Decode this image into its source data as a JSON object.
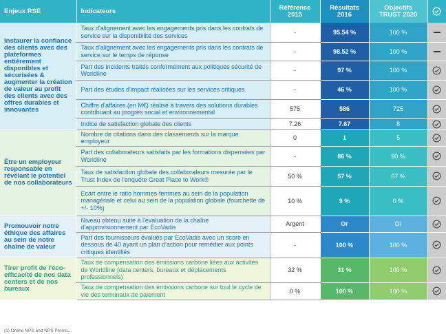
{
  "header": {
    "enjeux": "Enjeux RSE",
    "indicateurs": "Indicateurs",
    "reference_l1": "Référence",
    "reference_l2": "2015",
    "resultats_l1": "Résultats",
    "resultats_l2": "2016",
    "objectifs_l1": "Objectifs",
    "objectifs_l2": "TRUST 2020",
    "check_icon": "check-circle-icon"
  },
  "groups": [
    {
      "enjeu": "Instaurer la confiance des clients avec des plateformes entièrement disponibles et sécurisées & augmenter la création de valeur au profit des clients avec des offres durables et innovantes",
      "rows": [
        {
          "indicateur": "Taux d'alignement avec les engagements pris dans les contrats de service sur la disponibilité des services",
          "reference": "-",
          "resultat": "95.54 %",
          "objectif": "100 %",
          "statut": "dash"
        },
        {
          "indicateur": "Taux d'alignement avec les engagements pris dans les contrats de service sur le temps de réponse",
          "reference": "-",
          "resultat": "98.52 %",
          "objectif": "100 %",
          "statut": "dash"
        },
        {
          "indicateur": "Part des incidents traités conformément aux politiques sécurité de Worldline",
          "reference": "-",
          "resultat": "97 %",
          "objectif": "100 %",
          "statut": "check"
        },
        {
          "indicateur": "Part des études d'impact réalisées sur les services critiques",
          "reference": "-",
          "resultat": "46 %",
          "objectif": "100 %",
          "statut": "check"
        },
        {
          "indicateur": "Chiffre d'affaires (en M€) réalisé à travers des solutions durables contribuant au progrès social et environnemental",
          "reference": "575",
          "resultat": "586",
          "objectif": "725",
          "statut": "check"
        },
        {
          "indicateur": "Indice de satisfaction globale des clients",
          "reference": "7.26",
          "resultat": "7.67",
          "objectif": "8",
          "statut": "check"
        }
      ]
    },
    {
      "enjeu": "Être un employeur responsable en révélant le potentiel de nos collaborateurs",
      "rows": [
        {
          "indicateur": "Nombre de citations dans des classements sur la marque employeur",
          "reference": "0",
          "resultat": "1",
          "objectif": "5",
          "statut": "check"
        },
        {
          "indicateur": "Part des collaborateurs satisfaits par les formations dispensées par Worldline",
          "reference": "-",
          "resultat": "86 %",
          "objectif": "90 %",
          "statut": "check"
        },
        {
          "indicateur": "Taux de satisfaction globale des collaborateurs mesurée par le Trust Index de l'enquête Great Place to Work®",
          "reference": "50 %",
          "resultat": "57 %",
          "objectif": "67 %",
          "statut": "check"
        },
        {
          "indicateur": "Ecart entre le ratio hommes-femmes au sein de la population managériale et celui au sein de la population globale (fourchette de +/- 10%)",
          "reference": "10 %",
          "resultat": "9 %",
          "objectif": "0 %",
          "statut": "check"
        }
      ]
    },
    {
      "enjeu": "Promouvoir notre éthique des affaires au sein de notre chaîne de valeur",
      "rows": [
        {
          "indicateur": "Niveau obtenu suite à l'évaluation de la chaîne d'approvisionnement par EcoVadis",
          "reference": "Argent",
          "resultat": "Or",
          "objectif": "Or",
          "statut": "check"
        },
        {
          "indicateur": "Part des fournisseurs évalués par EcoVadis avec un score en dessous de 40 ayant un plan d'action pour remédier aux points critiques identifiés",
          "reference": "-",
          "resultat": "100 %",
          "objectif": "100 %",
          "statut": "check"
        }
      ]
    },
    {
      "enjeu": "Tirer profit de l'éco-efficacité de nos data centers et de nos bureaux",
      "rows": [
        {
          "indicateur": "Taux de compensation des émissions carbone liées aux activités de Worldline (data centers, bureaux et déplacements professionnels)",
          "reference": "32 %",
          "resultat": "31 %",
          "objectif": "100 %",
          "statut": "check"
        },
        {
          "indicateur": "Taux de compensation des émissions carbone sur tout le cycle de vie des terminaux de paiement",
          "reference": "0 %",
          "resultat": "100 %",
          "objectif": "100 %",
          "statut": "check"
        }
      ]
    }
  ],
  "footnote": "(1) Online NPS and NPS Promo...",
  "colors": {
    "g1_result": "#1f5fa8",
    "g1_objective": "#2fa4c6",
    "g2_result": "#1fa7b8",
    "g2_objective": "#39bfc4",
    "g3_result": "#2c88c8",
    "g3_objective": "#5bb1df",
    "g4_result": "#58b86a",
    "g4_objective": "#8fcd6f"
  }
}
